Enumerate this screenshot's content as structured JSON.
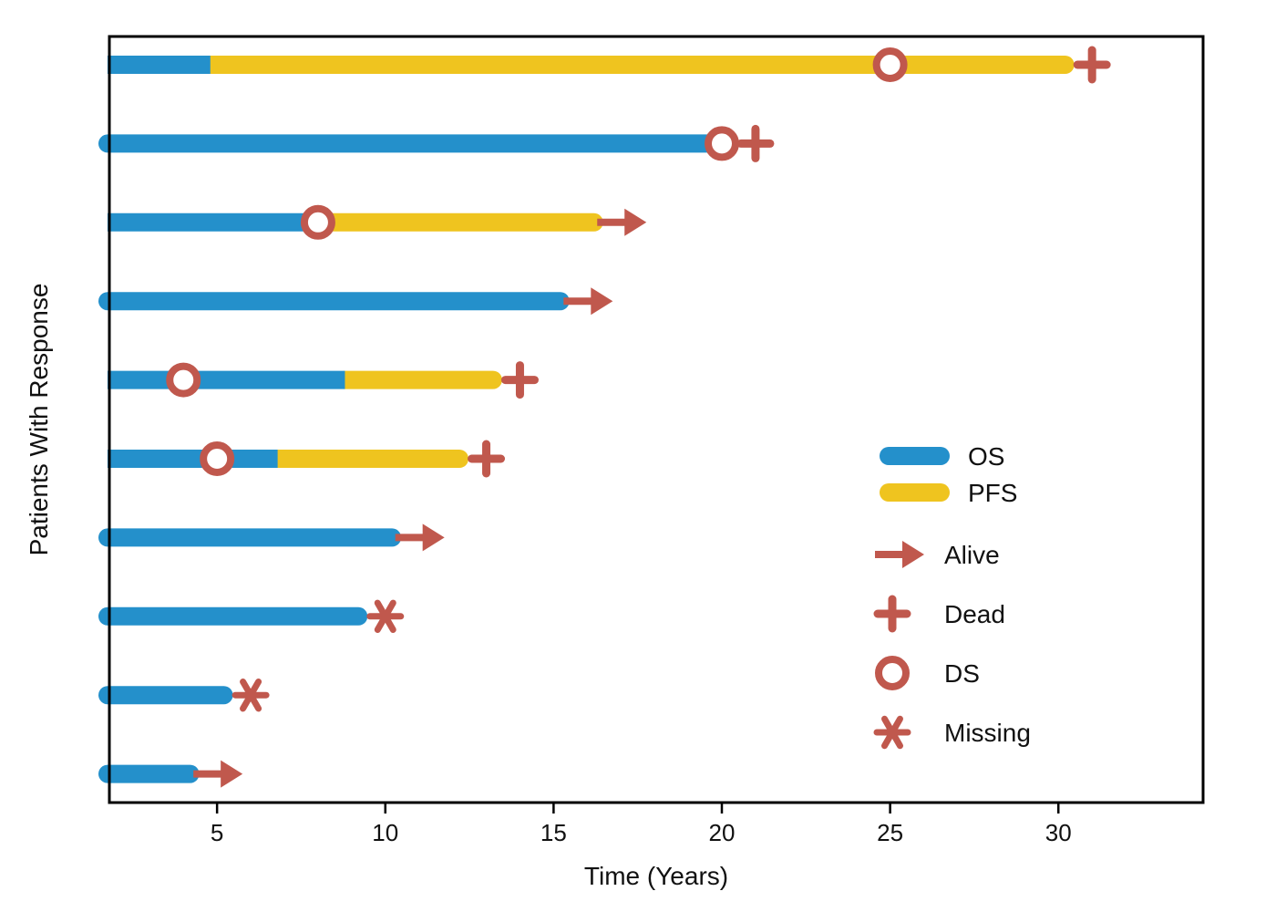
{
  "chart_data": {
    "type": "swimmer",
    "xlabel": "Time (Years)",
    "ylabel": "Patients With Response",
    "xlim": [
      1.8,
      34.3
    ],
    "x_ticks": [
      5,
      10,
      15,
      20,
      25,
      30
    ],
    "grid": false,
    "legend_position": "right",
    "colors": {
      "os": "#2490cb",
      "pfs": "#efc41f",
      "marker": "#c0584d"
    },
    "legend": {
      "bars": [
        {
          "key": "os",
          "label": "OS"
        },
        {
          "key": "pfs",
          "label": "PFS"
        }
      ],
      "markers": [
        {
          "key": "alive",
          "label": "Alive"
        },
        {
          "key": "dead",
          "label": "Dead"
        },
        {
          "key": "ds",
          "label": "DS"
        },
        {
          "key": "missing",
          "label": "Missing"
        }
      ]
    },
    "patients": [
      {
        "os_end": 4.8,
        "pfs_end": 30.2,
        "ds_at": 25.0,
        "status": "dead",
        "status_at": 31.0
      },
      {
        "os_end": 20.0,
        "pfs_end": null,
        "ds_at": 20.0,
        "status": "dead",
        "status_at": 21.0
      },
      {
        "os_end": 8.0,
        "pfs_end": 16.2,
        "ds_at": 8.0,
        "status": "alive",
        "status_at": 17.0
      },
      {
        "os_end": 15.2,
        "pfs_end": null,
        "ds_at": null,
        "status": "alive",
        "status_at": 16.0
      },
      {
        "os_end": 8.8,
        "pfs_end": 13.2,
        "ds_at": 4.0,
        "status": "dead",
        "status_at": 14.0
      },
      {
        "os_end": 6.8,
        "pfs_end": 12.2,
        "ds_at": 5.0,
        "status": "dead",
        "status_at": 13.0
      },
      {
        "os_end": 10.2,
        "pfs_end": null,
        "ds_at": null,
        "status": "alive",
        "status_at": 11.0
      },
      {
        "os_end": 9.2,
        "pfs_end": null,
        "ds_at": null,
        "status": "missing",
        "status_at": 10.0
      },
      {
        "os_end": 5.2,
        "pfs_end": null,
        "ds_at": null,
        "status": "missing",
        "status_at": 6.0
      },
      {
        "os_end": 4.2,
        "pfs_end": null,
        "ds_at": null,
        "status": "alive",
        "status_at": 5.0
      }
    ]
  }
}
